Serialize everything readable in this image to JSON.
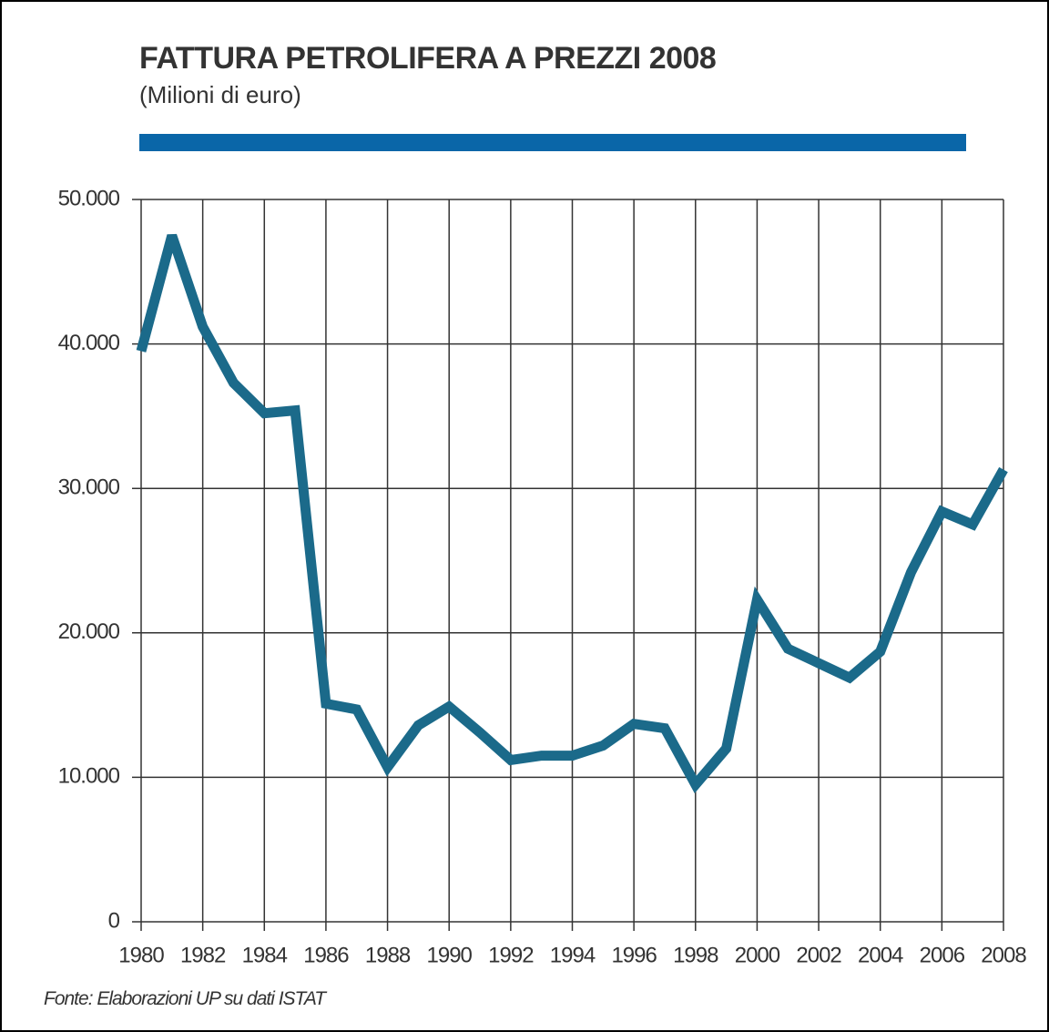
{
  "chart_data": {
    "type": "line",
    "title": "FATTURA PETROLIFERA A PREZZI 2008",
    "subtitle": "(Milioni di euro)",
    "source": "Fonte: Elaborazioni UP su dati ISTAT",
    "x": [
      1980,
      1981,
      1982,
      1983,
      1984,
      1985,
      1986,
      1987,
      1988,
      1989,
      1990,
      1991,
      1992,
      1993,
      1994,
      1995,
      1996,
      1997,
      1998,
      1999,
      2000,
      2001,
      2002,
      2003,
      2004,
      2005,
      2006,
      2007,
      2008
    ],
    "series": [
      {
        "color": "#1b6a8a",
        "values": [
          39500,
          47500,
          41200,
          37300,
          35200,
          35400,
          15100,
          14700,
          10700,
          13600,
          14900,
          13100,
          11200,
          11500,
          11500,
          12200,
          13700,
          13400,
          9500,
          12000,
          22300,
          18900,
          17900,
          16900,
          18700,
          24200,
          28400,
          27500,
          31300
        ]
      }
    ],
    "xlim": [
      1980,
      2008
    ],
    "xticks": [
      1980,
      1982,
      1984,
      1986,
      1988,
      1990,
      1992,
      1994,
      1996,
      1998,
      2000,
      2002,
      2004,
      2006,
      2008
    ],
    "ylim": [
      0,
      50000
    ],
    "yticks": [
      0,
      {
        "value": 10000,
        "label": "10.000"
      },
      {
        "value": 20000,
        "label": "20.000"
      },
      {
        "value": 30000,
        "label": "30.000"
      },
      {
        "value": 40000,
        "label": "40.000"
      },
      {
        "value": 50000,
        "label": "50.000"
      }
    ],
    "grid": true
  }
}
